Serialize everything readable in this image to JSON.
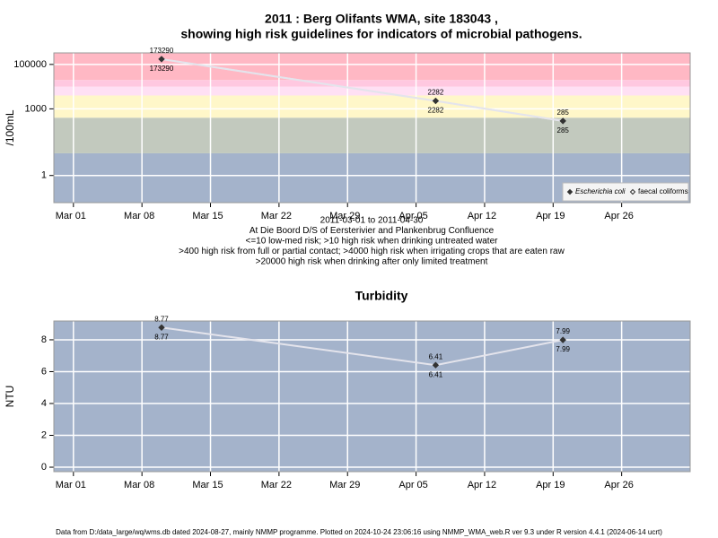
{
  "chart_data": [
    {
      "type": "line",
      "title": [
        "2011 : Berg Olifants WMA, site 183043 ,",
        "showing high risk guidelines for indicators of microbial pathogens."
      ],
      "ylabel": "/100mL",
      "log_scale": true,
      "grid": true,
      "legend": "lower right",
      "x": [
        "2011-03-10",
        "2011-04-07",
        "2011-04-20"
      ],
      "xlim": [
        "2011-02-27",
        "2011-05-03"
      ],
      "xticks": [
        {
          "value": "2011-03-01",
          "label": "Mar 01"
        },
        {
          "value": "2011-03-08",
          "label": "Mar 08"
        },
        {
          "value": "2011-03-15",
          "label": "Mar 15"
        },
        {
          "value": "2011-03-22",
          "label": "Mar 22"
        },
        {
          "value": "2011-03-29",
          "label": "Mar 29"
        },
        {
          "value": "2011-04-05",
          "label": "Apr 05"
        },
        {
          "value": "2011-04-12",
          "label": "Apr 12"
        },
        {
          "value": "2011-04-19",
          "label": "Apr 19"
        },
        {
          "value": "2011-04-26",
          "label": "Apr 26"
        }
      ],
      "ylim": [
        0.06,
        330000
      ],
      "yticks": [
        1,
        1000,
        100000
      ],
      "bands": [
        {
          "from": null,
          "to": 10,
          "color": "#a4b3cb"
        },
        {
          "from": 10,
          "to": 400,
          "color": "#c2c9be"
        },
        {
          "from": 400,
          "to": 4000,
          "color": "#fff7c9"
        },
        {
          "from": 4000,
          "to": 10000,
          "color": "#ffe0f4"
        },
        {
          "from": 10000,
          "to": 20000,
          "color": "#ffc8e0"
        },
        {
          "from": 20000,
          "to": null,
          "color": "#ffb8c4"
        }
      ],
      "series": [
        {
          "name": "Escherichia coli",
          "color": "#333333",
          "marker": "filled",
          "values": [
            173290,
            2282,
            285
          ]
        },
        {
          "name": "faecal coliforms",
          "color": "#333333",
          "marker": "open",
          "values": [
            173290,
            2282,
            285
          ]
        }
      ],
      "annotations": [
        "2011-03-01 to 2011-04-30",
        "At Die Boord D/S of Eersterivier and Plankenbrug Confluence",
        "<=10 low-med risk; >10 high risk when drinking untreated water",
        ">400 high risk from full or partial contact; >4000 high risk when irrigating crops that are eaten raw",
        ">20000 high risk when drinking after only limited treatment"
      ]
    },
    {
      "type": "line",
      "title": [
        "Turbidity"
      ],
      "ylabel": "NTU",
      "log_scale": false,
      "grid": true,
      "background": "#a4b3cb",
      "x": [
        "2011-03-10",
        "2011-04-07",
        "2011-04-20"
      ],
      "xlim": [
        "2011-02-27",
        "2011-05-03"
      ],
      "xticks": [
        {
          "value": "2011-03-01",
          "label": "Mar 01"
        },
        {
          "value": "2011-03-08",
          "label": "Mar 08"
        },
        {
          "value": "2011-03-15",
          "label": "Mar 15"
        },
        {
          "value": "2011-03-22",
          "label": "Mar 22"
        },
        {
          "value": "2011-03-29",
          "label": "Mar 29"
        },
        {
          "value": "2011-04-05",
          "label": "Apr 05"
        },
        {
          "value": "2011-04-12",
          "label": "Apr 12"
        },
        {
          "value": "2011-04-19",
          "label": "Apr 19"
        },
        {
          "value": "2011-04-26",
          "label": "Apr 26"
        }
      ],
      "ylim": [
        -0.28,
        9.18
      ],
      "yticks": [
        0,
        2,
        4,
        6,
        8
      ],
      "series": [
        {
          "name": "Turbidity",
          "color": "#333333",
          "marker": "filled",
          "values": [
            8.77,
            6.41,
            7.99
          ]
        }
      ]
    }
  ],
  "footer": "Data from D:/data_large/wq/wms.db dated 2024-08-27, mainly NMMP programme. Plotted on 2024-10-24 23:06:16 using NMMP_WMA_web.R ver 9.3 under R version 4.4.1 (2024-06-14 ucrt)"
}
